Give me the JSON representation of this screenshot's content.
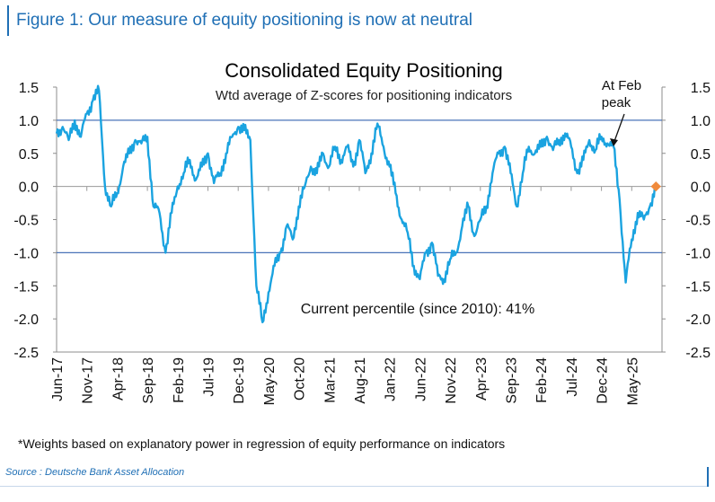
{
  "figure_title": "Figure 1: Our measure of equity positioning is now at neutral",
  "footnote": "*Weights based on explanatory power in regression of equity performance on indicators",
  "source": "Source : Deutsche Bank Asset Allocation",
  "colors": {
    "accent": "#1f6fb5",
    "line": "#1aa3e0",
    "ref": "#4a73b8",
    "marker": "#f08a3c"
  },
  "chart_data": {
    "type": "line",
    "title": "Consolidated Equity Positioning",
    "subtitle": "Wtd average of Z-scores for positioning indicators",
    "ylim": [
      -2.5,
      1.5
    ],
    "yticks": [
      "1.5",
      "1.0",
      "0.5",
      "0.0",
      "-0.5",
      "-1.0",
      "-1.5",
      "-2.0",
      "-2.5"
    ],
    "ytick_values": [
      1.5,
      1.0,
      0.5,
      0.0,
      -0.5,
      -1.0,
      -1.5,
      -2.0,
      -2.5
    ],
    "xlim": [
      "2017-06",
      "2025-10"
    ],
    "xticks": [
      "Jun-17",
      "Nov-17",
      "Apr-18",
      "Sep-18",
      "Feb-19",
      "Jul-19",
      "Dec-19",
      "May-20",
      "Oct-20",
      "Mar-21",
      "Aug-21",
      "Jan-22",
      "Jun-22",
      "Nov-22",
      "Apr-23",
      "Sep-23",
      "Feb-24",
      "Jul-24",
      "Dec-24",
      "May-25"
    ],
    "reference_lines": [
      1.0,
      -1.0
    ],
    "annotations": {
      "feb_peak": "At Feb peak",
      "percentile": "Current percentile (since 2010): 41%"
    },
    "latest_point": {
      "x": "2025-09",
      "y": 0.0
    },
    "series": [
      {
        "points": [
          [
            "2017-06",
            0.8
          ],
          [
            "2017-07",
            0.9
          ],
          [
            "2017-08",
            0.7
          ],
          [
            "2017-09",
            1.0
          ],
          [
            "2017-10",
            0.75
          ],
          [
            "2017-11",
            1.1
          ],
          [
            "2017-12",
            1.3
          ],
          [
            "2018-01",
            1.45
          ],
          [
            "2018-02",
            0.0
          ],
          [
            "2018-03",
            -0.3
          ],
          [
            "2018-04",
            -0.1
          ],
          [
            "2018-05",
            0.3
          ],
          [
            "2018-06",
            0.5
          ],
          [
            "2018-07",
            0.7
          ],
          [
            "2018-08",
            0.65
          ],
          [
            "2018-09",
            0.75
          ],
          [
            "2018-10",
            -0.3
          ],
          [
            "2018-11",
            -0.4
          ],
          [
            "2018-12",
            -1.0
          ],
          [
            "2019-01",
            -0.4
          ],
          [
            "2019-02",
            0.0
          ],
          [
            "2019-03",
            0.2
          ],
          [
            "2019-04",
            0.4
          ],
          [
            "2019-05",
            0.1
          ],
          [
            "2019-06",
            0.3
          ],
          [
            "2019-07",
            0.5
          ],
          [
            "2019-08",
            0.05
          ],
          [
            "2019-09",
            0.2
          ],
          [
            "2019-10",
            0.5
          ],
          [
            "2019-11",
            0.75
          ],
          [
            "2019-12",
            0.9
          ],
          [
            "2020-01",
            0.85
          ],
          [
            "2020-02",
            0.7
          ],
          [
            "2020-03",
            -1.5
          ],
          [
            "2020-04",
            -2.05
          ],
          [
            "2020-05",
            -1.6
          ],
          [
            "2020-06",
            -1.2
          ],
          [
            "2020-07",
            -1.0
          ],
          [
            "2020-08",
            -0.6
          ],
          [
            "2020-09",
            -0.8
          ],
          [
            "2020-10",
            -0.3
          ],
          [
            "2020-11",
            0.0
          ],
          [
            "2020-12",
            0.3
          ],
          [
            "2021-01",
            0.2
          ],
          [
            "2021-02",
            0.5
          ],
          [
            "2021-03",
            0.3
          ],
          [
            "2021-04",
            0.6
          ],
          [
            "2021-05",
            0.4
          ],
          [
            "2021-06",
            0.6
          ],
          [
            "2021-07",
            0.3
          ],
          [
            "2021-08",
            0.7
          ],
          [
            "2021-09",
            0.2
          ],
          [
            "2021-10",
            0.5
          ],
          [
            "2021-11",
            0.95
          ],
          [
            "2021-12",
            0.6
          ],
          [
            "2022-01",
            0.3
          ],
          [
            "2022-02",
            -0.1
          ],
          [
            "2022-03",
            -0.5
          ],
          [
            "2022-04",
            -0.7
          ],
          [
            "2022-05",
            -1.2
          ],
          [
            "2022-06",
            -1.4
          ],
          [
            "2022-07",
            -1.0
          ],
          [
            "2022-08",
            -0.85
          ],
          [
            "2022-09",
            -1.35
          ],
          [
            "2022-10",
            -1.4
          ],
          [
            "2022-11",
            -1.1
          ],
          [
            "2022-12",
            -1.0
          ],
          [
            "2023-01",
            -0.6
          ],
          [
            "2023-02",
            -0.3
          ],
          [
            "2023-03",
            -0.75
          ],
          [
            "2023-04",
            -0.5
          ],
          [
            "2023-05",
            -0.3
          ],
          [
            "2023-06",
            0.2
          ],
          [
            "2023-07",
            0.5
          ],
          [
            "2023-08",
            0.6
          ],
          [
            "2023-09",
            0.2
          ],
          [
            "2023-10",
            -0.3
          ],
          [
            "2023-11",
            0.2
          ],
          [
            "2023-12",
            0.6
          ],
          [
            "2024-01",
            0.5
          ],
          [
            "2024-02",
            0.6
          ],
          [
            "2024-03",
            0.75
          ],
          [
            "2024-04",
            0.55
          ],
          [
            "2024-05",
            0.7
          ],
          [
            "2024-06",
            0.8
          ],
          [
            "2024-07",
            0.6
          ],
          [
            "2024-08",
            0.2
          ],
          [
            "2024-09",
            0.4
          ],
          [
            "2024-10",
            0.7
          ],
          [
            "2024-11",
            0.55
          ],
          [
            "2024-12",
            0.75
          ],
          [
            "2025-01",
            0.65
          ],
          [
            "2025-02",
            0.6
          ],
          [
            "2025-03",
            -0.2
          ],
          [
            "2025-04",
            -1.45
          ],
          [
            "2025-05",
            -0.8
          ],
          [
            "2025-06",
            -0.4
          ],
          [
            "2025-07",
            -0.5
          ],
          [
            "2025-08",
            -0.3
          ],
          [
            "2025-09",
            0.0
          ]
        ]
      }
    ]
  }
}
